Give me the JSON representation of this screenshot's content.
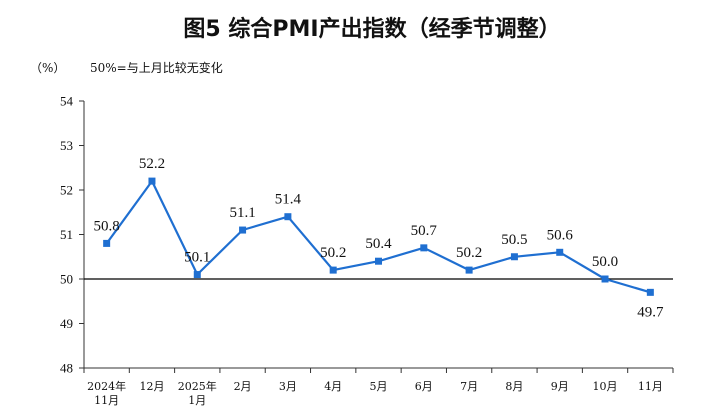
{
  "chart_data": {
    "type": "line",
    "title": "图5  综合PMI产出指数（经季节调整）",
    "unit_label": "（%）",
    "note": "50%=与上月比较无变化",
    "categories": [
      [
        "2024年",
        "11月"
      ],
      [
        "12月"
      ],
      [
        "2025年",
        "1月"
      ],
      [
        "2月"
      ],
      [
        "3月"
      ],
      [
        "4月"
      ],
      [
        "5月"
      ],
      [
        "6月"
      ],
      [
        "7月"
      ],
      [
        "8月"
      ],
      [
        "9月"
      ],
      [
        "10月"
      ],
      [
        "11月"
      ]
    ],
    "values": [
      50.8,
      52.2,
      50.1,
      51.1,
      51.4,
      50.2,
      50.4,
      50.7,
      50.2,
      50.5,
      50.6,
      50.0,
      49.7
    ],
    "data_labels": [
      "50.8",
      "52.2",
      "50.1",
      "51.1",
      "51.4",
      "50.2",
      "50.4",
      "50.7",
      "50.2",
      "50.5",
      "50.6",
      "50.0",
      "49.7"
    ],
    "label_placement": [
      "above",
      "above",
      "above",
      "above",
      "above",
      "above",
      "above",
      "above",
      "above",
      "above",
      "above",
      "above",
      "below"
    ],
    "ylim": [
      48,
      54
    ],
    "yticks": [
      "48",
      "49",
      "50",
      "51",
      "52",
      "53",
      "54"
    ],
    "reference_value": 50,
    "grid": false,
    "legend": "none",
    "colors": {
      "series": "#1f6fd1",
      "axis": "#333333",
      "reference": "#000000",
      "text": "#111111"
    }
  }
}
